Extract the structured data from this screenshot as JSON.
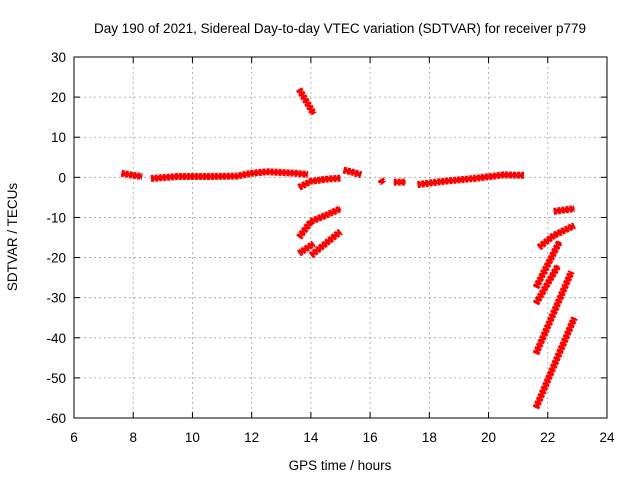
{
  "chart_data": {
    "type": "scatter",
    "title": "Day 190 of 2021, Sidereal Day-to-day VTEC variation (SDTVAR) for receiver p779",
    "xlabel": "GPS time / hours",
    "ylabel": "SDTVAR / TECUs",
    "xlim": [
      6,
      24
    ],
    "ylim": [
      -60,
      30
    ],
    "xticks": [
      "6",
      "8",
      "10",
      "12",
      "14",
      "16",
      "18",
      "20",
      "22",
      "24"
    ],
    "yticks": [
      "30",
      "20",
      "10",
      "0",
      "-10",
      "-20",
      "-30",
      "-40",
      "-50",
      "-60"
    ],
    "grid": true,
    "marker_color": "#ff0000",
    "series": [
      {
        "x": [
          7.6,
          8.0,
          8.3
        ],
        "y": [
          1.0,
          0.5,
          0.2
        ]
      },
      {
        "x": [
          8.6,
          9.5,
          10.5,
          11.5,
          12.0,
          12.5,
          13.0,
          13.5,
          13.9
        ],
        "y": [
          -0.3,
          0.2,
          0.2,
          0.3,
          1.0,
          1.4,
          1.2,
          1.0,
          0.7
        ]
      },
      {
        "x": [
          13.6,
          14.0,
          14.5,
          15.0
        ],
        "y": [
          -2.5,
          -1.0,
          -0.5,
          -0.2
        ]
      },
      {
        "x": [
          15.1,
          15.4,
          15.7
        ],
        "y": [
          1.8,
          1.3,
          0.6
        ]
      },
      {
        "x": [
          16.35,
          16.45
        ],
        "y": [
          -0.5,
          -1.5
        ]
      },
      {
        "x": [
          16.8,
          17.2
        ],
        "y": [
          -1.2,
          -1.2
        ]
      },
      {
        "x": [
          17.6,
          18.5,
          19.5,
          20.5,
          21.2
        ],
        "y": [
          -1.8,
          -1.0,
          -0.3,
          0.6,
          0.5
        ]
      },
      {
        "x": [
          13.6,
          14.1
        ],
        "y": [
          22.0,
          15.8
        ]
      },
      {
        "x": [
          13.6,
          14.0,
          14.5,
          15.0
        ],
        "y": [
          -15.0,
          -11.0,
          -9.5,
          -7.8
        ]
      },
      {
        "x": [
          13.6,
          14.1
        ],
        "y": [
          -19.0,
          -16.5
        ]
      },
      {
        "x": [
          14.0,
          14.5,
          15.0
        ],
        "y": [
          -19.5,
          -16.5,
          -13.5
        ]
      },
      {
        "x": [
          21.7,
          22.2,
          22.9
        ],
        "y": [
          -17.5,
          -14.5,
          -12.0
        ]
      },
      {
        "x": [
          22.2,
          22.9
        ],
        "y": [
          -8.5,
          -7.8
        ]
      },
      {
        "x": [
          21.6,
          22.4
        ],
        "y": [
          -27.5,
          -16.0
        ]
      },
      {
        "x": [
          21.6,
          22.35
        ],
        "y": [
          -31.5,
          -22.0
        ]
      },
      {
        "x": [
          21.6,
          22.8
        ],
        "y": [
          -44.0,
          -23.5
        ]
      },
      {
        "x": [
          21.6,
          22.9
        ],
        "y": [
          -57.5,
          -35.0
        ]
      }
    ]
  }
}
